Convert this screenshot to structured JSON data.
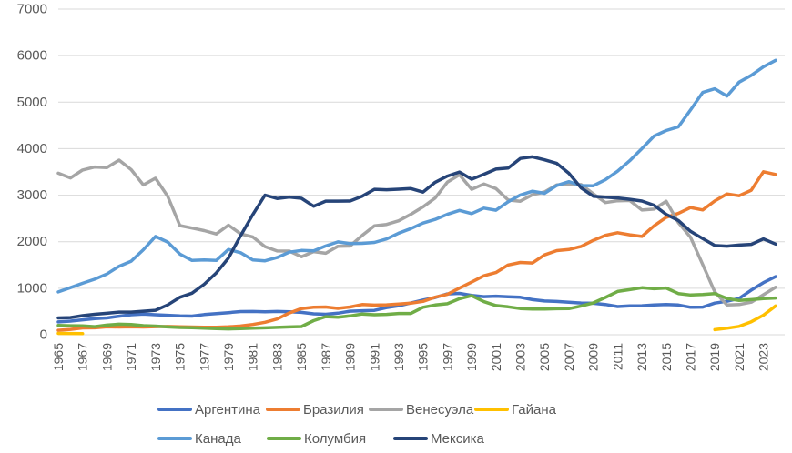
{
  "chart_data": {
    "type": "line",
    "title": "",
    "xlabel": "",
    "ylabel": "",
    "ylim": [
      0,
      7000
    ],
    "y_ticks": [
      0,
      1000,
      2000,
      3000,
      4000,
      5000,
      6000,
      7000
    ],
    "grid": "horizontal",
    "legend_position": "bottom",
    "x": [
      1965,
      1966,
      1967,
      1968,
      1969,
      1970,
      1971,
      1972,
      1973,
      1974,
      1975,
      1976,
      1977,
      1978,
      1979,
      1980,
      1981,
      1982,
      1983,
      1984,
      1985,
      1986,
      1987,
      1988,
      1989,
      1990,
      1991,
      1992,
      1993,
      1994,
      1995,
      1996,
      1997,
      1998,
      1999,
      2000,
      2001,
      2002,
      2003,
      2004,
      2005,
      2006,
      2007,
      2008,
      2009,
      2010,
      2011,
      2012,
      2013,
      2014,
      2015,
      2016,
      2017,
      2018,
      2019,
      2020,
      2021,
      2022,
      2023,
      2024
    ],
    "x_tick_labels": [
      "1965",
      "1967",
      "1969",
      "1971",
      "1973",
      "1975",
      "1977",
      "1979",
      "1981",
      "1983",
      "1985",
      "1987",
      "1989",
      "1991",
      "1993",
      "1995",
      "1997",
      "1999",
      "2001",
      "2003",
      "2005",
      "2007",
      "2009",
      "2011",
      "2013",
      "2015",
      "2017",
      "2019",
      "2021",
      "2023"
    ],
    "series": [
      {
        "key": "argentina",
        "name": "Аргентина",
        "color": "#4472C4",
        "values": [
          275,
          293,
          320,
          347,
          361,
          398,
          431,
          443,
          430,
          419,
          405,
          400,
          435,
          453,
          476,
          499,
          500,
          495,
          500,
          493,
          481,
          450,
          439,
          463,
          507,
          517,
          524,
          582,
          622,
          682,
          746,
          800,
          877,
          890,
          847,
          819,
          830,
          818,
          806,
          754,
          725,
          716,
          698,
          682,
          676,
          651,
          607,
          620,
          624,
          640,
          650,
          640,
          590,
          595,
          680,
          720,
          780,
          960,
          1120,
          1250
        ]
      },
      {
        "key": "brazil",
        "name": "Бразилия",
        "color": "#ED7D31",
        "values": [
          96,
          116,
          146,
          148,
          172,
          167,
          172,
          167,
          174,
          177,
          172,
          167,
          161,
          160,
          170,
          188,
          220,
          268,
          339,
          468,
          563,
          590,
          597,
          567,
          596,
          650,
          637,
          643,
          660,
          678,
          718,
          807,
          868,
          1003,
          1133,
          1268,
          1337,
          1499,
          1555,
          1542,
          1716,
          1809,
          1833,
          1899,
          2029,
          2137,
          2193,
          2149,
          2114,
          2341,
          2525,
          2608,
          2734,
          2683,
          2877,
          3026,
          2987,
          3107,
          3504,
          3446
        ]
      },
      {
        "key": "venezuela",
        "name": "Венесуэла",
        "color": "#A5A5A5",
        "values": [
          3473,
          3371,
          3542,
          3605,
          3594,
          3754,
          3549,
          3220,
          3366,
          2976,
          2346,
          2294,
          2238,
          2166,
          2356,
          2168,
          2102,
          1895,
          1801,
          1798,
          1677,
          1787,
          1752,
          1903,
          1907,
          2135,
          2342,
          2371,
          2450,
          2588,
          2750,
          2938,
          3280,
          3440,
          3126,
          3239,
          3142,
          2895,
          2870,
          3009,
          3070,
          3221,
          3230,
          3228,
          3030,
          2842,
          2880,
          2887,
          2680,
          2700,
          2870,
          2410,
          2096,
          1510,
          920,
          640,
          650,
          700,
          860,
          1020
        ]
      },
      {
        "key": "guyana",
        "name": "Гайана",
        "color": "#FFC000",
        "values": [
          30,
          28,
          26,
          null,
          null,
          null,
          null,
          null,
          null,
          null,
          null,
          null,
          null,
          null,
          null,
          null,
          null,
          null,
          null,
          null,
          null,
          null,
          null,
          null,
          null,
          null,
          null,
          null,
          null,
          null,
          null,
          null,
          null,
          null,
          null,
          null,
          null,
          null,
          null,
          null,
          null,
          null,
          null,
          null,
          null,
          null,
          null,
          null,
          null,
          null,
          null,
          null,
          null,
          null,
          110,
          140,
          180,
          280,
          420,
          620
        ]
      },
      {
        "key": "canada",
        "name": "Канада",
        "color": "#5B9BD5",
        "values": [
          920,
          1012,
          1106,
          1194,
          1306,
          1473,
          1582,
          1829,
          2114,
          1993,
          1735,
          1598,
          1608,
          1597,
          1835,
          1764,
          1610,
          1590,
          1661,
          1775,
          1812,
          1805,
          1909,
          1997,
          1960,
          1965,
          1984,
          2058,
          2185,
          2281,
          2402,
          2480,
          2588,
          2672,
          2604,
          2721,
          2677,
          2858,
          3004,
          3085,
          3041,
          3208,
          3290,
          3207,
          3202,
          3332,
          3515,
          3740,
          4000,
          4271,
          4389,
          4470,
          4831,
          5208,
          5287,
          5130,
          5429,
          5576,
          5760,
          5900
        ]
      },
      {
        "key": "colombia",
        "name": "Колумбия",
        "color": "#70AD47",
        "values": [
          202,
          194,
          190,
          174,
          208,
          226,
          221,
          195,
          185,
          169,
          157,
          152,
          142,
          133,
          126,
          131,
          142,
          149,
          159,
          169,
          176,
          304,
          390,
          377,
          404,
          446,
          430,
          438,
          458,
          458,
          591,
          639,
          667,
          775,
          838,
          711,
          627,
          601,
          564,
          551,
          554,
          559,
          561,
          618,
          685,
          801,
          930,
          969,
          1010,
          990,
          1006,
          886,
          854,
          866,
          886,
          781,
          738,
          754,
          777,
          790
        ]
      },
      {
        "key": "mexico",
        "name": "Мексика",
        "color": "#264478",
        "values": [
          362,
          370,
          411,
          439,
          461,
          487,
          486,
          506,
          525,
          641,
          806,
          894,
          1086,
          1330,
          1650,
          2129,
          2583,
          3001,
          2930,
          2960,
          2933,
          2762,
          2872,
          2872,
          2875,
          2977,
          3126,
          3116,
          3129,
          3142,
          3065,
          3277,
          3410,
          3499,
          3343,
          3450,
          3560,
          3585,
          3789,
          3824,
          3760,
          3683,
          3471,
          3157,
          2978,
          2959,
          2940,
          2911,
          2875,
          2784,
          2587,
          2456,
          2224,
          2068,
          1918,
          1905,
          1928,
          1944,
          2060,
          1950
        ]
      }
    ],
    "legend_rows": [
      [
        "argentina",
        "brazil",
        "venezuela",
        "guyana"
      ],
      [
        "canada",
        "colombia",
        "mexico"
      ]
    ]
  },
  "style": {
    "grid_color": "#D9D9D9",
    "axis_label_color": "#595959",
    "background": "#FFFFFF"
  }
}
